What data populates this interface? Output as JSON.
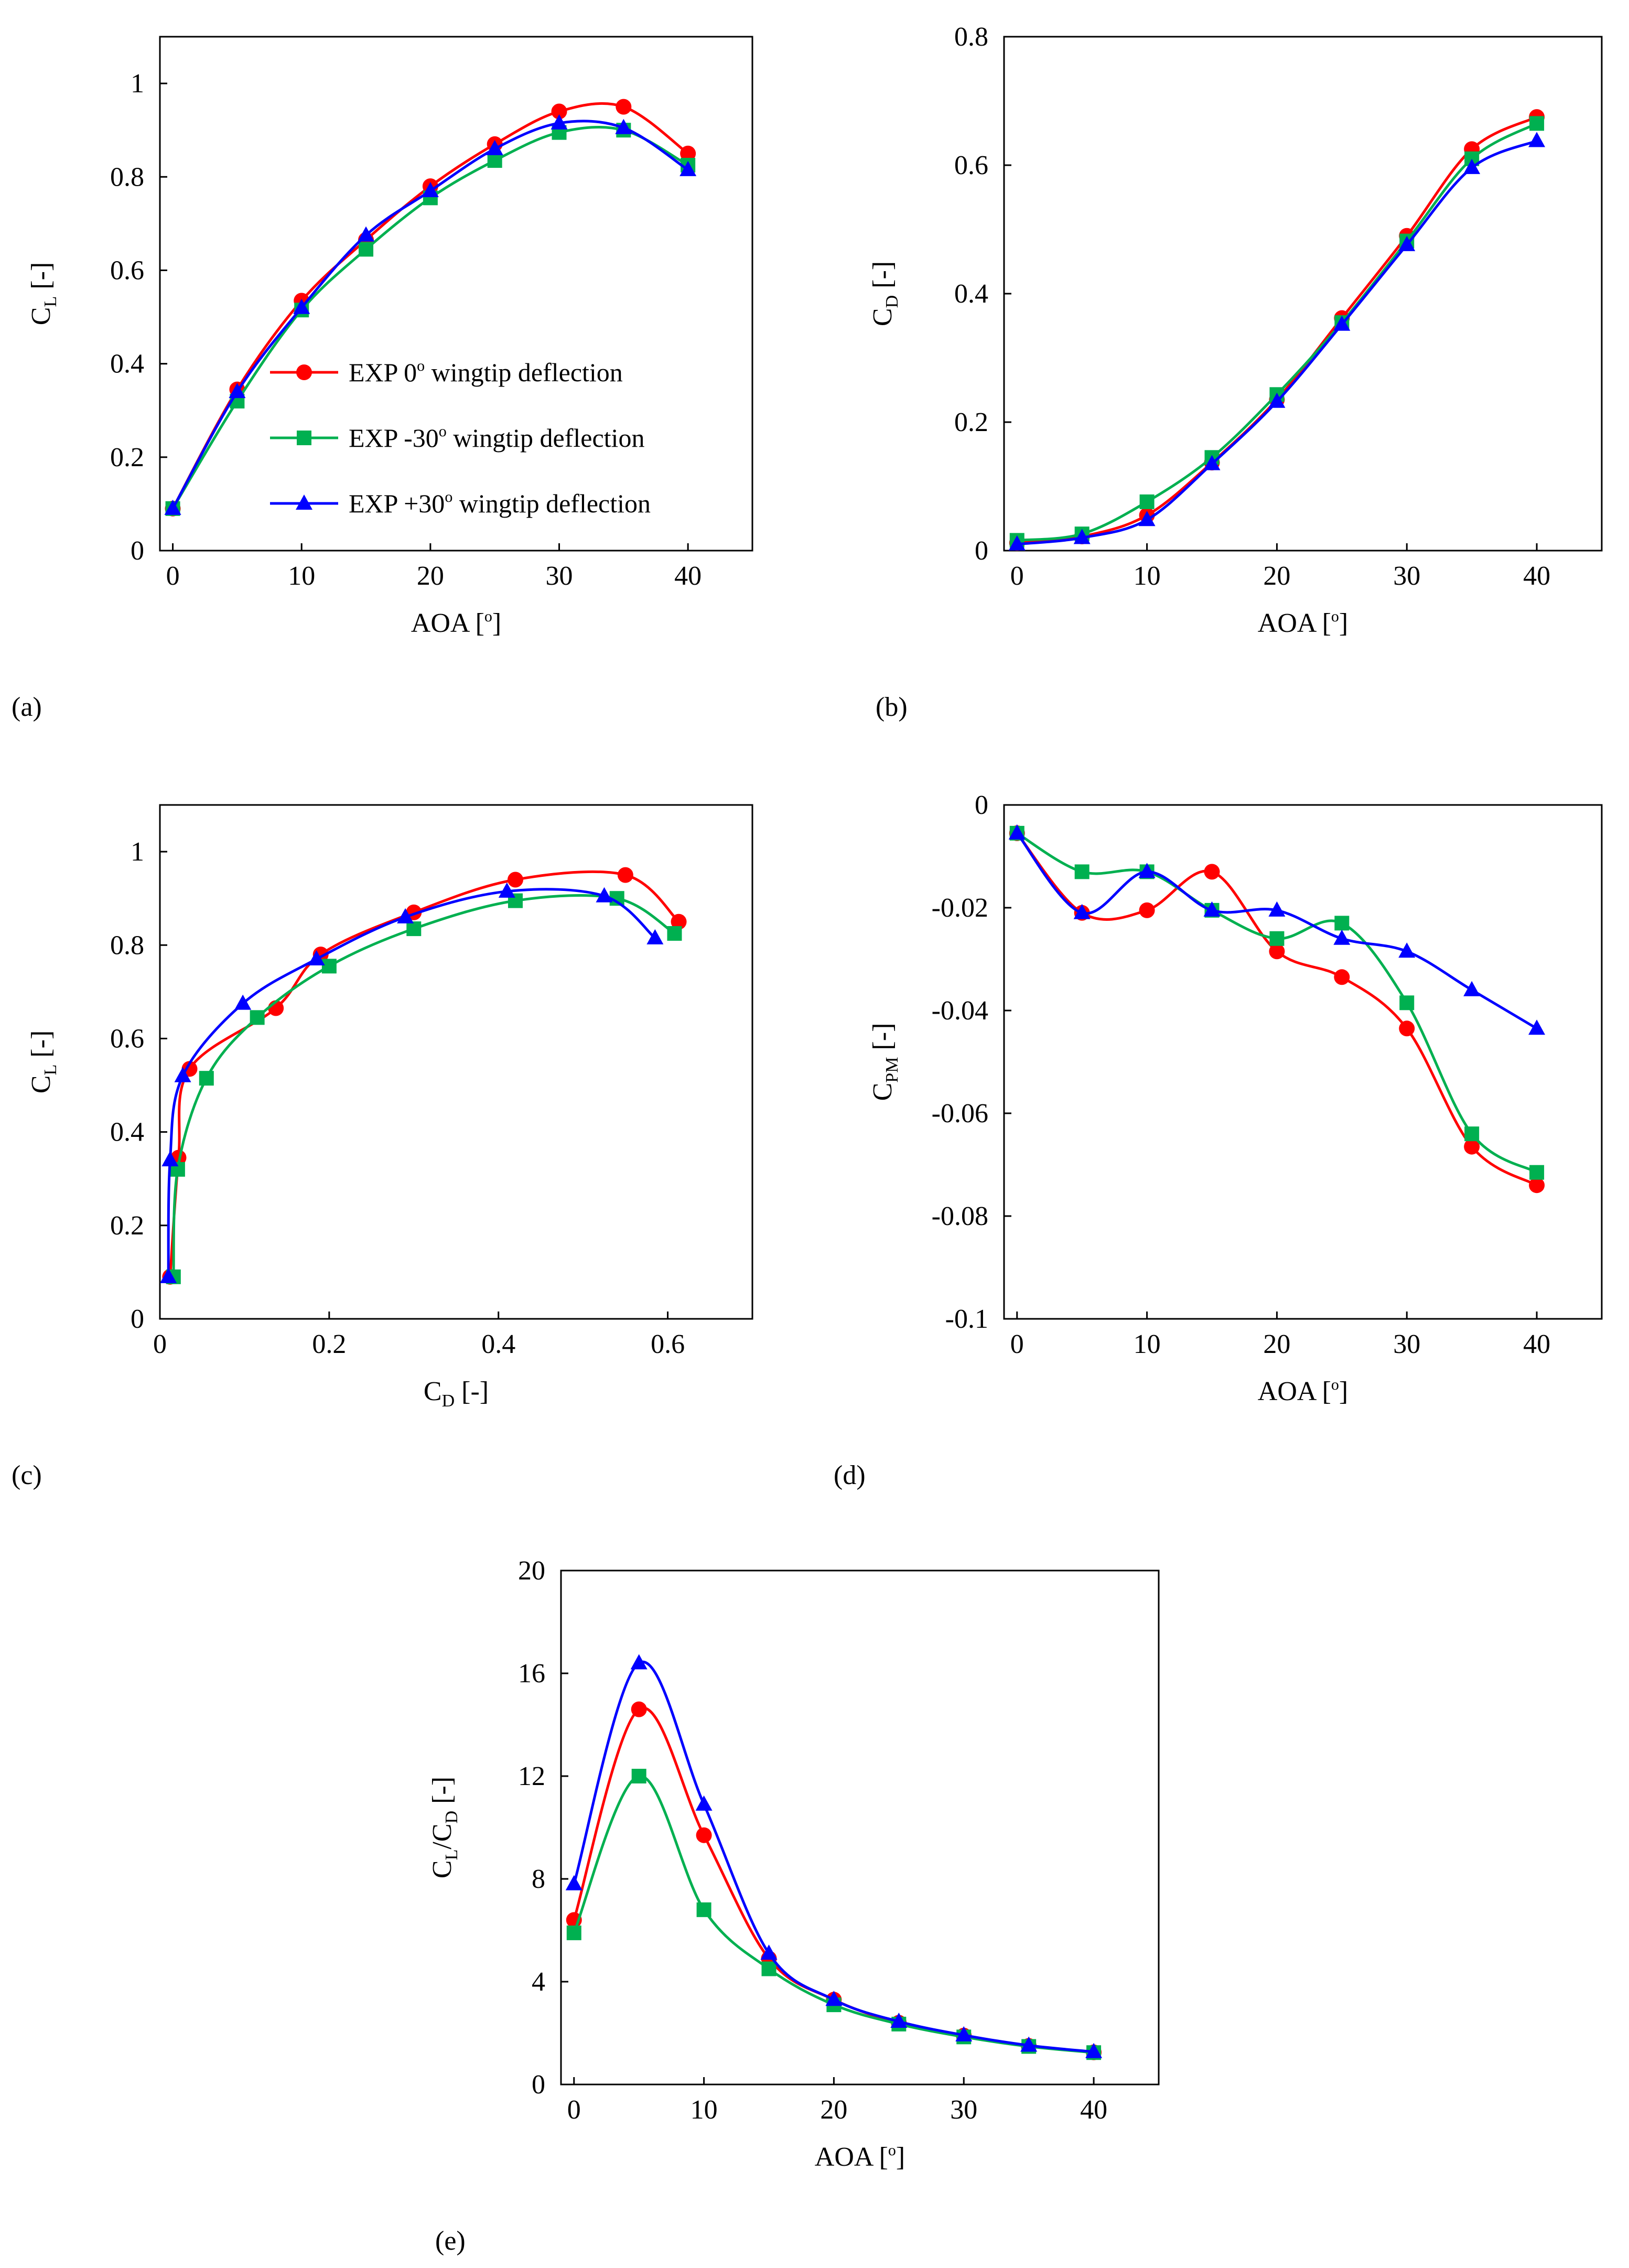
{
  "legend": {
    "entries": [
      {
        "marker": "circle",
        "color": "#ff0000",
        "pre": "EXP 0",
        "deg": "o",
        "post": " wingtip deflection"
      },
      {
        "marker": "square",
        "color": "#00b050",
        "pre": "EXP -30",
        "deg": "o",
        "post": " wingtip deflection"
      },
      {
        "marker": "triangle",
        "color": "#0000ff",
        "pre": "EXP +30",
        "deg": "o",
        "post": " wingtip deflection"
      }
    ]
  },
  "chart_data": [
    {
      "panel": "(a)",
      "type": "line",
      "xlabel": {
        "main": "AOA [",
        "sup": "o",
        "after": "]"
      },
      "ylabel": {
        "main": "C",
        "sub": "L",
        "after": " [-]"
      },
      "xlim": [
        -1,
        45
      ],
      "ylim": [
        0,
        1.1
      ],
      "xticks": [
        "0",
        "10",
        "20",
        "30",
        "40"
      ],
      "xtickvals": [
        0,
        10,
        20,
        30,
        40
      ],
      "yticks": [
        "0",
        "0.2",
        "0.4",
        "0.6",
        "0.8",
        "1"
      ],
      "ytickvals": [
        0,
        0.2,
        0.4,
        0.6,
        0.8,
        1.0
      ],
      "grid": false,
      "legend": "bottom-center",
      "series": [
        {
          "color": "#ff0000",
          "marker": "circle",
          "x": [
            0,
            5,
            10,
            15,
            20,
            25,
            30,
            35,
            40
          ],
          "y": [
            0.09,
            0.345,
            0.535,
            0.665,
            0.78,
            0.87,
            0.94,
            0.95,
            0.85
          ]
        },
        {
          "color": "#00b050",
          "marker": "square",
          "x": [
            0,
            5,
            10,
            15,
            20,
            25,
            30,
            35,
            40
          ],
          "y": [
            0.09,
            0.32,
            0.515,
            0.645,
            0.755,
            0.835,
            0.895,
            0.9,
            0.825
          ]
        },
        {
          "color": "#0000ff",
          "marker": "triangle",
          "x": [
            0,
            5,
            10,
            15,
            20,
            25,
            30,
            35,
            40
          ],
          "y": [
            0.09,
            0.34,
            0.52,
            0.675,
            0.77,
            0.86,
            0.915,
            0.905,
            0.815
          ]
        }
      ]
    },
    {
      "panel": "(b)",
      "type": "line",
      "xlabel": {
        "main": "AOA [",
        "sup": "o",
        "after": "]"
      },
      "ylabel": {
        "main": "C",
        "sub": "D",
        "after": " [-]"
      },
      "xlim": [
        -1,
        45
      ],
      "ylim": [
        0,
        0.8
      ],
      "xticks": [
        "0",
        "10",
        "20",
        "30",
        "40"
      ],
      "xtickvals": [
        0,
        10,
        20,
        30,
        40
      ],
      "yticks": [
        "0",
        "0.2",
        "0.4",
        "0.6",
        "0.8"
      ],
      "ytickvals": [
        0,
        0.2,
        0.4,
        0.6,
        0.8
      ],
      "grid": false,
      "series": [
        {
          "color": "#ff0000",
          "marker": "circle",
          "x": [
            0,
            5,
            10,
            15,
            20,
            25,
            30,
            35,
            40
          ],
          "y": [
            0.012,
            0.022,
            0.055,
            0.137,
            0.235,
            0.362,
            0.49,
            0.625,
            0.675
          ]
        },
        {
          "color": "#00b050",
          "marker": "square",
          "x": [
            0,
            5,
            10,
            15,
            20,
            25,
            30,
            35,
            40
          ],
          "y": [
            0.016,
            0.026,
            0.076,
            0.145,
            0.243,
            0.355,
            0.482,
            0.61,
            0.665
          ]
        },
        {
          "color": "#0000ff",
          "marker": "triangle",
          "x": [
            0,
            5,
            10,
            15,
            20,
            25,
            30,
            35,
            40
          ],
          "y": [
            0.01,
            0.02,
            0.048,
            0.135,
            0.232,
            0.352,
            0.476,
            0.596,
            0.638
          ]
        }
      ]
    },
    {
      "panel": "(c)",
      "type": "line",
      "xlabel": {
        "main": "C",
        "sub": "D",
        "after": " [-]"
      },
      "ylabel": {
        "main": "C",
        "sub": "L",
        "after": " [-]"
      },
      "xlim": [
        0,
        0.7
      ],
      "ylim": [
        0,
        1.1
      ],
      "xticks": [
        "0",
        "0.2",
        "0.4",
        "0.6"
      ],
      "xtickvals": [
        0,
        0.2,
        0.4,
        0.6
      ],
      "yticks": [
        "0",
        "0.2",
        "0.4",
        "0.6",
        "0.8",
        "1"
      ],
      "ytickvals": [
        0,
        0.2,
        0.4,
        0.6,
        0.8,
        1.0
      ],
      "grid": false,
      "series": [
        {
          "color": "#ff0000",
          "marker": "circle",
          "x": [
            0.012,
            0.022,
            0.035,
            0.137,
            0.19,
            0.3,
            0.42,
            0.55,
            0.613
          ],
          "y": [
            0.09,
            0.345,
            0.535,
            0.665,
            0.78,
            0.87,
            0.94,
            0.95,
            0.85
          ]
        },
        {
          "color": "#00b050",
          "marker": "square",
          "x": [
            0.016,
            0.021,
            0.055,
            0.115,
            0.2,
            0.3,
            0.42,
            0.54,
            0.608
          ],
          "y": [
            0.09,
            0.32,
            0.515,
            0.645,
            0.755,
            0.835,
            0.895,
            0.9,
            0.825
          ]
        },
        {
          "color": "#0000ff",
          "marker": "triangle",
          "x": [
            0.01,
            0.012,
            0.027,
            0.098,
            0.185,
            0.29,
            0.41,
            0.525,
            0.585
          ],
          "y": [
            0.09,
            0.34,
            0.52,
            0.675,
            0.77,
            0.86,
            0.915,
            0.905,
            0.815
          ]
        }
      ]
    },
    {
      "panel": "(d)",
      "type": "line",
      "xlabel": {
        "main": "AOA [",
        "sup": "o",
        "after": "]"
      },
      "ylabel": {
        "main": "C",
        "sub": "PM",
        "after": " [-]"
      },
      "xlim": [
        -1,
        45
      ],
      "ylim": [
        -0.1,
        0
      ],
      "xticks": [
        "0",
        "10",
        "20",
        "30",
        "40"
      ],
      "xtickvals": [
        0,
        10,
        20,
        30,
        40
      ],
      "yticks": [
        "-0.1",
        "-0.08",
        "-0.06",
        "-0.04",
        "-0.02",
        "0"
      ],
      "ytickvals": [
        -0.1,
        -0.08,
        -0.06,
        -0.04,
        -0.02,
        0
      ],
      "grid": false,
      "series": [
        {
          "color": "#ff0000",
          "marker": "circle",
          "x": [
            0,
            5,
            10,
            15,
            20,
            25,
            30,
            35,
            40
          ],
          "y": [
            -0.0055,
            -0.021,
            -0.0205,
            -0.013,
            -0.0285,
            -0.0335,
            -0.0435,
            -0.0665,
            -0.074
          ]
        },
        {
          "color": "#00b050",
          "marker": "square",
          "x": [
            0,
            5,
            10,
            15,
            20,
            25,
            30,
            35,
            40
          ],
          "y": [
            -0.0055,
            -0.013,
            -0.013,
            -0.0205,
            -0.026,
            -0.023,
            -0.0385,
            -0.064,
            -0.0715
          ]
        },
        {
          "color": "#0000ff",
          "marker": "triangle",
          "x": [
            0,
            5,
            10,
            15,
            20,
            25,
            30,
            35,
            40
          ],
          "y": [
            -0.0055,
            -0.021,
            -0.013,
            -0.0205,
            -0.0205,
            -0.026,
            -0.0285,
            -0.036,
            -0.0435
          ]
        }
      ]
    },
    {
      "panel": "(e)",
      "type": "line",
      "xlabel": {
        "main": "AOA [",
        "sup": "o",
        "after": "]"
      },
      "ylabel": {
        "main": "C",
        "sub": "L",
        "mid": "/C",
        "sub2": "D",
        "after": " [-]"
      },
      "xlim": [
        -1,
        45
      ],
      "ylim": [
        0,
        20
      ],
      "xticks": [
        "0",
        "10",
        "20",
        "30",
        "40"
      ],
      "xtickvals": [
        0,
        10,
        20,
        30,
        40
      ],
      "yticks": [
        "0",
        "4",
        "8",
        "12",
        "16",
        "20"
      ],
      "ytickvals": [
        0,
        4,
        8,
        12,
        16,
        20
      ],
      "grid": false,
      "series": [
        {
          "color": "#ff0000",
          "marker": "circle",
          "x": [
            0,
            5,
            10,
            15,
            20,
            25,
            30,
            35,
            40
          ],
          "y": [
            6.4,
            14.6,
            9.7,
            4.9,
            3.3,
            2.4,
            1.9,
            1.5,
            1.25
          ]
        },
        {
          "color": "#00b050",
          "marker": "square",
          "x": [
            0,
            5,
            10,
            15,
            20,
            25,
            30,
            35,
            40
          ],
          "y": [
            5.9,
            12.0,
            6.8,
            4.5,
            3.1,
            2.35,
            1.85,
            1.48,
            1.24
          ]
        },
        {
          "color": "#0000ff",
          "marker": "triangle",
          "x": [
            0,
            5,
            10,
            15,
            20,
            25,
            30,
            35,
            40
          ],
          "y": [
            7.8,
            16.4,
            10.9,
            5.1,
            3.3,
            2.45,
            1.92,
            1.52,
            1.27
          ]
        }
      ]
    }
  ]
}
